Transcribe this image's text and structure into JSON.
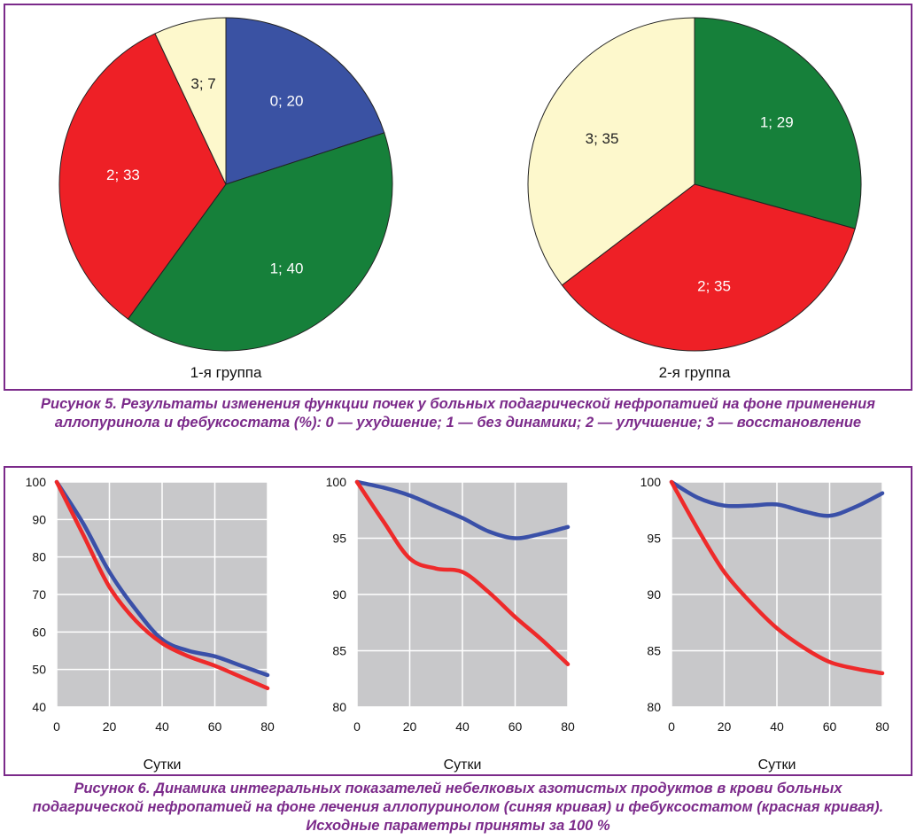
{
  "figure5": {
    "caption": "Рисунок 5. Результаты изменения функции почек у больных подагрической нефропатией на фоне применения аллопуринола и фебуксостата (%): 0 — ухудшение; 1 — без динамики; 2 — улучшение; 3 — восстановление"
  },
  "figure6": {
    "caption": "Рисунок 6. Динамика интегральных показателей небелковых азотистых продуктов в крови больных подагрической нефропатией на фоне лечения аллопуринолом (синяя кривая) и фебуксостатом (красная кривая). Исходные параметры приняты за 100 %"
  },
  "colors": {
    "frame": "#7b2a8a",
    "blue": "#3a52a3",
    "green": "#16803a",
    "red": "#ee2026",
    "cream": "#fdf8cc",
    "plot_bg": "#c8c8ca",
    "curve_blue": "#3a50a8",
    "curve_red": "#ee2a2a"
  },
  "chart_data": [
    {
      "type": "pie",
      "title": "1-я группа",
      "slices": [
        {
          "label": "0; 20",
          "value": 20,
          "color": "#3a52a3"
        },
        {
          "label": "1; 40",
          "value": 40,
          "color": "#16803a"
        },
        {
          "label": "2; 33",
          "value": 33,
          "color": "#ee2026"
        },
        {
          "label": "3; 7",
          "value": 7,
          "color": "#fdf8cc"
        }
      ]
    },
    {
      "type": "pie",
      "title": "2-я группа",
      "slices": [
        {
          "label": "1; 29",
          "value": 29,
          "color": "#16803a"
        },
        {
          "label": "2; 35",
          "value": 35,
          "color": "#ee2026"
        },
        {
          "label": "3; 35",
          "value": 35,
          "color": "#fdf8cc"
        }
      ]
    },
    {
      "type": "line",
      "xlabel": "Сутки",
      "xlim": [
        0,
        80
      ],
      "ylim": [
        40,
        100
      ],
      "xticks": [
        0,
        20,
        40,
        60,
        80
      ],
      "yticks": [
        40,
        50,
        60,
        70,
        80,
        90,
        100
      ],
      "grid": true,
      "series": [
        {
          "color": "#3a50a8",
          "x": [
            0,
            10,
            20,
            30,
            40,
            50,
            60,
            70,
            80
          ],
          "y": [
            100,
            89,
            76,
            66,
            58,
            55,
            53.5,
            51,
            48.5
          ]
        },
        {
          "color": "#ee2a2a",
          "x": [
            0,
            10,
            20,
            30,
            40,
            50,
            60,
            70,
            80
          ],
          "y": [
            100,
            86,
            72,
            63,
            57,
            53.5,
            51,
            48,
            45
          ]
        }
      ]
    },
    {
      "type": "line",
      "xlabel": "Сутки",
      "xlim": [
        0,
        80
      ],
      "ylim": [
        80,
        100
      ],
      "xticks": [
        0,
        20,
        40,
        60,
        80
      ],
      "yticks": [
        80,
        85,
        90,
        95,
        100
      ],
      "grid": true,
      "series": [
        {
          "color": "#3a50a8",
          "x": [
            0,
            10,
            20,
            30,
            40,
            50,
            60,
            70,
            80
          ],
          "y": [
            100,
            99.5,
            98.8,
            97.8,
            96.8,
            95.6,
            95,
            95.4,
            96
          ]
        },
        {
          "color": "#ee2a2a",
          "x": [
            0,
            10,
            20,
            30,
            40,
            50,
            60,
            70,
            80
          ],
          "y": [
            100,
            96.5,
            93.2,
            92.3,
            92,
            90.2,
            88,
            86,
            83.8
          ]
        }
      ]
    },
    {
      "type": "line",
      "xlabel": "Сутки",
      "xlim": [
        0,
        80
      ],
      "ylim": [
        80,
        100
      ],
      "xticks": [
        0,
        20,
        40,
        60,
        80
      ],
      "yticks": [
        80,
        85,
        90,
        95,
        100
      ],
      "grid": true,
      "series": [
        {
          "color": "#3a50a8",
          "x": [
            0,
            10,
            20,
            30,
            40,
            50,
            60,
            70,
            80
          ],
          "y": [
            100,
            98.6,
            97.9,
            97.9,
            98,
            97.4,
            97,
            97.8,
            99
          ]
        },
        {
          "color": "#ee2a2a",
          "x": [
            0,
            10,
            20,
            30,
            40,
            50,
            60,
            70,
            80
          ],
          "y": [
            100,
            95.8,
            92,
            89.3,
            87,
            85.3,
            84,
            83.4,
            83
          ]
        }
      ]
    }
  ]
}
